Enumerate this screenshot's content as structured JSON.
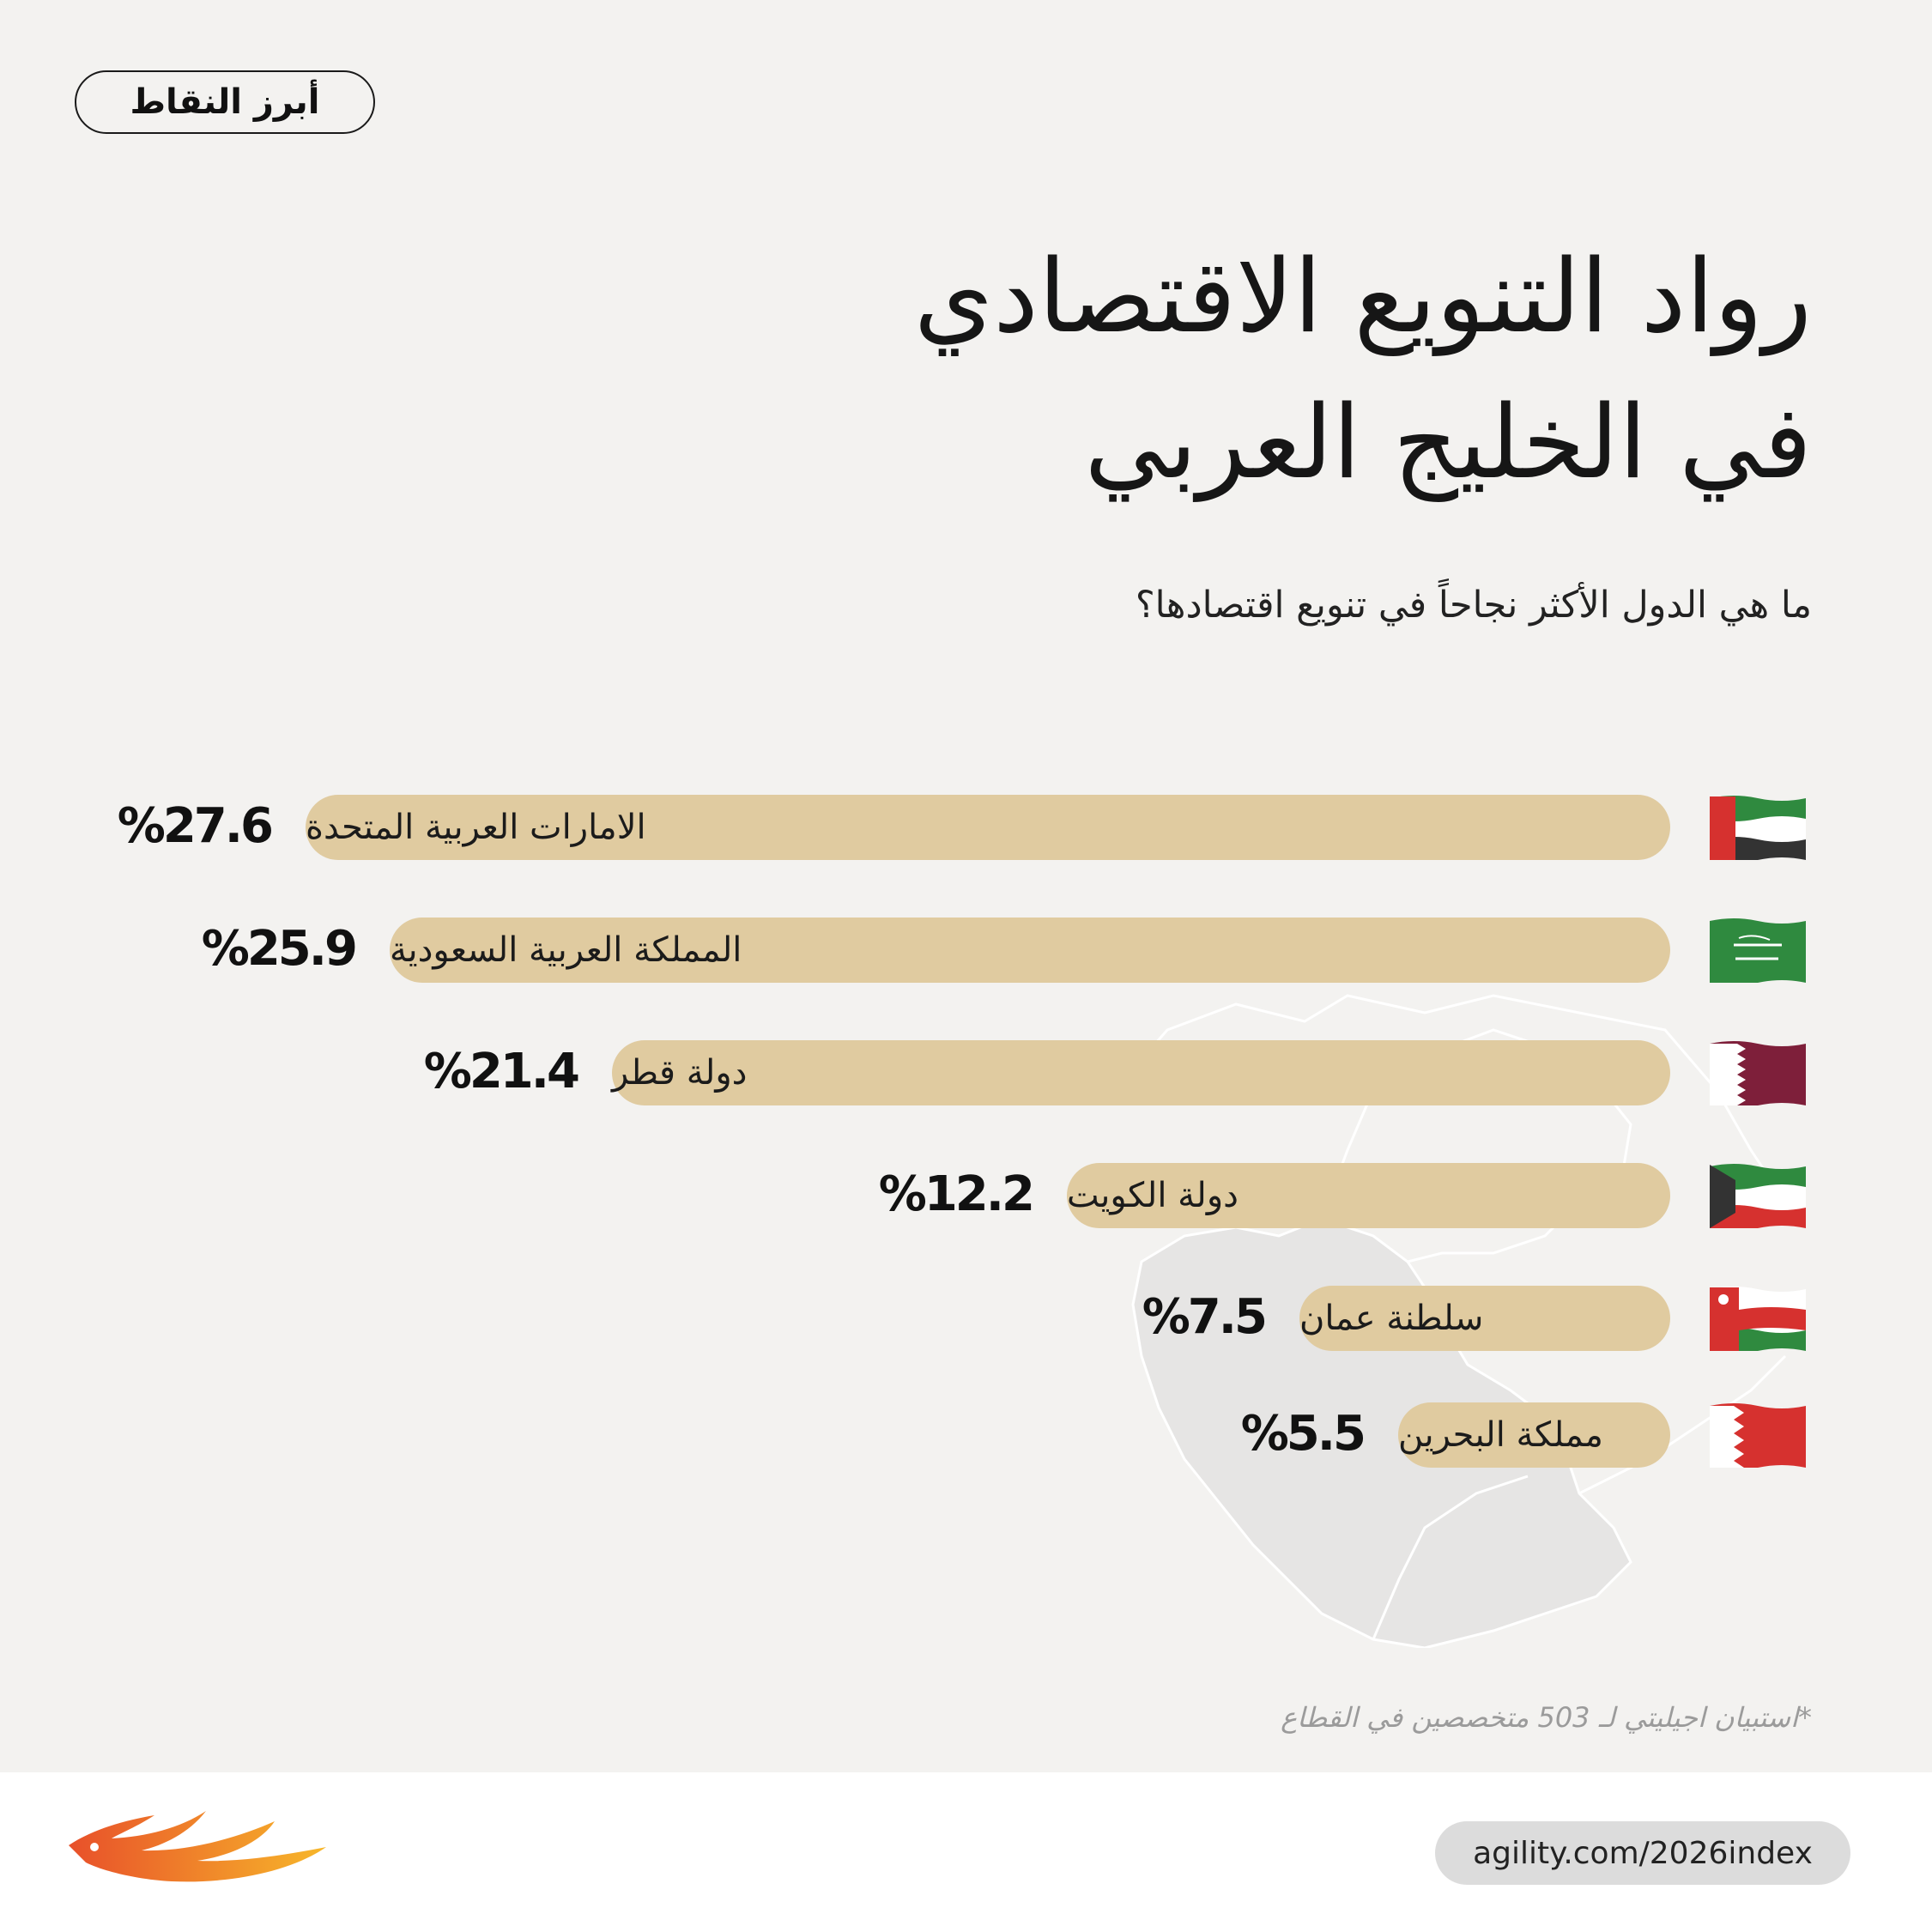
{
  "tag": "أبرز النقاط",
  "title": [
    "رواد التنويع الاقتصادي",
    "في الخليج العربي"
  ],
  "subtitle": "ما هي الدول الأكثر نجاحاً في تنويع اقتصادها؟",
  "footnote": "*استبيان اجيليتي لـ 503 متخصصين في القطاع",
  "url": "agility.com/2026index",
  "colors": {
    "bar": "#e0cba0",
    "background": "#f3f2f0",
    "footer": "#ffffff",
    "url_pill": "#dcdcdc"
  },
  "chart_data": {
    "type": "bar",
    "orientation": "horizontal",
    "categories": [
      "الامارات العربية المتحدة",
      "المملكة العربية السعودية",
      "دولة قطر",
      "دولة الكويت",
      "سلطنة عمان",
      "مملكة البحرين"
    ],
    "values": [
      27.6,
      25.9,
      21.4,
      12.2,
      7.5,
      5.5
    ],
    "value_labels": [
      "%27.6",
      "%25.9",
      "%21.4",
      "%12.2",
      "%7.5",
      "%5.5"
    ],
    "flags": [
      "uae-flag",
      "saudi-flag",
      "qatar-flag",
      "kuwait-flag",
      "oman-flag",
      "bahrain-flag"
    ],
    "bar_color": "#e0cba0"
  }
}
